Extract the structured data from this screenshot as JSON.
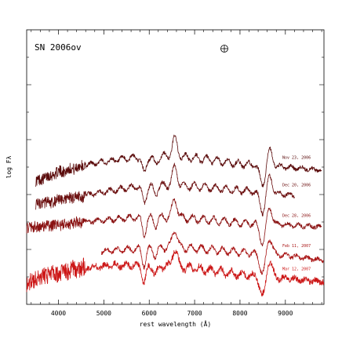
{
  "chart_data": {
    "type": "line",
    "title": "SN 2006ov",
    "xlabel": "rest wavelength (Å)",
    "ylabel": "log Fλ",
    "xlim": [
      3300,
      9850
    ],
    "x_ticks": [
      4000,
      5000,
      6000,
      7000,
      8000,
      9000
    ],
    "x_tick_labels": [
      "4000",
      "5000",
      "6000",
      "7000",
      "8000",
      "9000"
    ],
    "y_scale": "log",
    "y_ticks_labeled": false,
    "grid": false,
    "telluric_symbol": "⊕",
    "telluric_wavelength": 7600,
    "offset_between_spectra": 1.1,
    "features": [
      {
        "name": "Na I D",
        "wavelength": 5890,
        "depth": 0.9,
        "width": 45
      },
      {
        "name": "Ba II",
        "wavelength": 6140,
        "depth": 0.45,
        "width": 45
      },
      {
        "name": "H-alpha emission",
        "wavelength": 6563,
        "depth": -1.0,
        "width": 55
      },
      {
        "name": "Ca II IR triplet absorption",
        "wavelength": 8500,
        "depth": 1.1,
        "width": 60
      },
      {
        "name": "Ca II IR triplet emission",
        "wavelength": 8650,
        "depth": -0.9,
        "width": 60
      }
    ],
    "series": [
      {
        "name": "Nov 23, 2006",
        "color": "#5a0b0b",
        "x_range": [
          3500,
          9800
        ],
        "level": [
          [
            3500,
            0.0
          ],
          [
            4000,
            0.45
          ],
          [
            4800,
            0.9
          ],
          [
            5600,
            1.15
          ],
          [
            6200,
            1.25
          ],
          [
            7000,
            1.15
          ],
          [
            8000,
            0.85
          ],
          [
            9000,
            0.7
          ],
          [
            9800,
            0.55
          ]
        ]
      },
      {
        "name": "Dec 20, 2006",
        "color": "#6b0f0f",
        "x_range": [
          3500,
          9200
        ],
        "level": [
          [
            3500,
            0.0
          ],
          [
            4000,
            0.2
          ],
          [
            4800,
            0.55
          ],
          [
            5600,
            0.85
          ],
          [
            6200,
            0.95
          ],
          [
            7000,
            0.9
          ],
          [
            8000,
            0.7
          ],
          [
            8800,
            0.55
          ],
          [
            9200,
            0.45
          ]
        ]
      },
      {
        "name": "Dec 28, 2006",
        "color": "#8a1212",
        "x_range": [
          3300,
          9800
        ],
        "level": [
          [
            3300,
            0.0
          ],
          [
            4000,
            0.15
          ],
          [
            4800,
            0.35
          ],
          [
            5600,
            0.5
          ],
          [
            6200,
            0.55
          ],
          [
            7000,
            0.45
          ],
          [
            8000,
            0.25
          ],
          [
            9000,
            0.15
          ],
          [
            9800,
            0.05
          ]
        ]
      },
      {
        "name": "Feb 11, 2007",
        "color": "#a91414",
        "x_range": [
          4950,
          9850
        ],
        "level": [
          [
            4950,
            0.0
          ],
          [
            5600,
            0.1
          ],
          [
            6200,
            0.2
          ],
          [
            7000,
            0.15
          ],
          [
            8000,
            -0.05
          ],
          [
            9000,
            -0.2
          ],
          [
            9850,
            -0.45
          ]
        ]
      },
      {
        "name": "Mar 12, 2007",
        "color": "#cc1616",
        "x_range": [
          3300,
          9850
        ],
        "level": [
          [
            3300,
            -0.4
          ],
          [
            3800,
            0.0
          ],
          [
            4500,
            0.3
          ],
          [
            5200,
            0.45
          ],
          [
            6000,
            0.45
          ],
          [
            7000,
            0.3
          ],
          [
            8000,
            0.0
          ],
          [
            9000,
            -0.2
          ],
          [
            9850,
            -0.35
          ]
        ]
      }
    ]
  }
}
